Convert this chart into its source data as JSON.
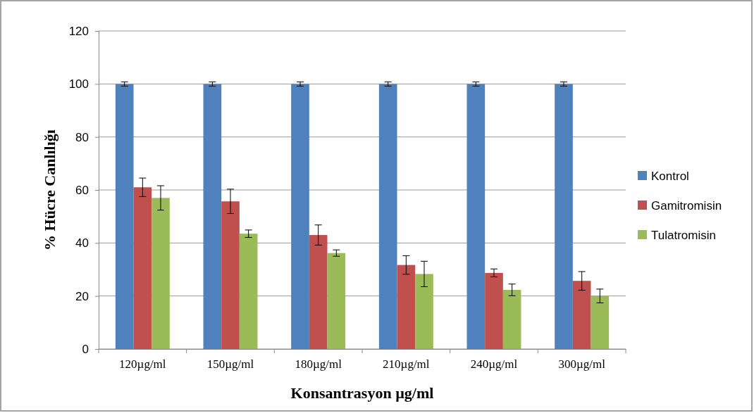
{
  "chart_data": {
    "type": "bar",
    "xlabel": "Konsantrasyon µg/ml",
    "ylabel": "% Hücre Canlılığı",
    "categories": [
      "120µg/ml",
      "150µg/ml",
      "180µg/ml",
      "210µg/ml",
      "240µg/ml",
      "300µg/ml"
    ],
    "series": [
      {
        "name": "Kontrol",
        "color": "#4f81bd",
        "values": [
          100,
          100,
          100,
          100,
          100,
          100
        ],
        "errors": [
          0.8,
          0.8,
          0.8,
          0.8,
          0.8,
          0.8
        ]
      },
      {
        "name": "Gamitromisin",
        "color": "#c0504d",
        "values": [
          61,
          55.7,
          43,
          31.7,
          28.7,
          25.7
        ],
        "errors": [
          3.5,
          4.6,
          3.8,
          3.5,
          1.5,
          3.5
        ]
      },
      {
        "name": "Tulatromisin",
        "color": "#9bbb59",
        "values": [
          57,
          43.5,
          36.2,
          28.3,
          22.3,
          20
        ],
        "errors": [
          4.6,
          1.4,
          1.2,
          4.8,
          2.2,
          2.6
        ]
      }
    ],
    "ylim": [
      0,
      120
    ],
    "yticks": [
      0,
      20,
      40,
      60,
      80,
      100,
      120
    ],
    "grid": "y",
    "legend": "right"
  }
}
